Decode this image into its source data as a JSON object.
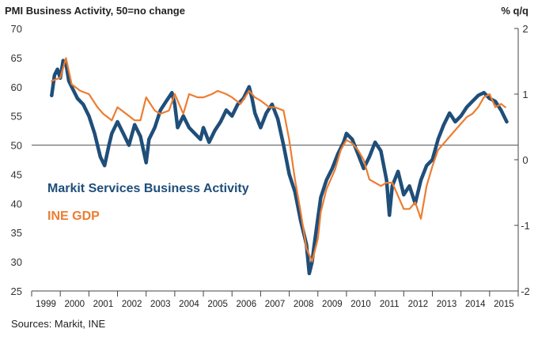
{
  "chart_data": {
    "type": "line",
    "title": "PMI Business Activity, 50=no change",
    "right_axis_title": "% q/q",
    "source": "Sources: Markit, INE",
    "x_range": [
      1999.0,
      2016.0
    ],
    "x_tick_labels": [
      "1999",
      "2000",
      "2001",
      "2002",
      "2003",
      "2004",
      "2005",
      "2006",
      "2007",
      "2008",
      "2009",
      "2010",
      "2011",
      "2012",
      "2013",
      "2014",
      "2015"
    ],
    "y_left": {
      "range": [
        25,
        70
      ],
      "ticks": [
        25,
        30,
        35,
        40,
        45,
        50,
        55,
        60,
        65,
        70
      ]
    },
    "y_right": {
      "range": [
        -2,
        2
      ],
      "ticks": [
        -2,
        -1,
        0,
        1,
        2
      ]
    },
    "reference_line": 50,
    "grid": false,
    "colors": {
      "pmi": "#1f4e79",
      "gdp": "#ed7d31",
      "refline": "#555555"
    },
    "series": [
      {
        "name": "Markit Services Business Activity",
        "axis": "left",
        "x": [
          1999.7,
          1999.8,
          1999.9,
          2000.0,
          2000.1,
          2000.2,
          2000.3,
          2000.4,
          2000.6,
          2000.8,
          2001.0,
          2001.2,
          2001.4,
          2001.55,
          2001.7,
          2001.8,
          2002.0,
          2002.2,
          2002.4,
          2002.6,
          2002.8,
          2003.0,
          2003.1,
          2003.3,
          2003.5,
          2003.7,
          2003.9,
          2004.0,
          2004.1,
          2004.3,
          2004.5,
          2004.7,
          2004.9,
          2005.0,
          2005.2,
          2005.4,
          2005.6,
          2005.8,
          2006.0,
          2006.2,
          2006.4,
          2006.6,
          2006.7,
          2006.8,
          2007.0,
          2007.2,
          2007.4,
          2007.6,
          2007.8,
          2008.0,
          2008.2,
          2008.4,
          2008.6,
          2008.7,
          2008.8,
          2008.85,
          2009.0,
          2009.1,
          2009.3,
          2009.5,
          2009.7,
          2009.9,
          2010.0,
          2010.2,
          2010.4,
          2010.6,
          2010.8,
          2011.0,
          2011.2,
          2011.4,
          2011.5,
          2011.6,
          2011.8,
          2012.0,
          2012.2,
          2012.4,
          2012.6,
          2012.8,
          2013.0,
          2013.2,
          2013.4,
          2013.6,
          2013.8,
          2014.0,
          2014.2,
          2014.4,
          2014.6,
          2014.8,
          2015.0,
          2015.2,
          2015.4,
          2015.5,
          2015.6
        ],
        "values": [
          58.5,
          62.0,
          63.0,
          61.5,
          64.5,
          64.0,
          61.0,
          60.0,
          58.0,
          57.0,
          55.0,
          52.0,
          48.0,
          46.5,
          50.0,
          52.0,
          54.0,
          52.0,
          50.0,
          53.5,
          51.5,
          47.0,
          51.0,
          53.0,
          56.0,
          57.5,
          59.0,
          57.0,
          53.0,
          55.0,
          53.0,
          52.0,
          51.0,
          53.0,
          50.5,
          52.5,
          54.0,
          56.0,
          55.0,
          57.0,
          58.0,
          60.0,
          58.0,
          55.5,
          53.0,
          55.5,
          57.0,
          54.5,
          50.0,
          45.0,
          42.0,
          37.0,
          33.0,
          28.0,
          30.0,
          32.0,
          37.5,
          41.0,
          44.0,
          46.0,
          48.5,
          50.5,
          52.0,
          51.0,
          48.5,
          46.0,
          48.0,
          50.5,
          49.0,
          44.0,
          38.0,
          43.0,
          45.5,
          41.5,
          43.0,
          40.0,
          44.0,
          46.5,
          47.5,
          51.0,
          53.5,
          55.5,
          54.0,
          55.0,
          56.5,
          57.5,
          58.5,
          59.0,
          58.0,
          57.5,
          56.0,
          55.0,
          54.0
        ]
      },
      {
        "name": "INE GDP",
        "axis": "right",
        "x": [
          1999.7,
          2000.0,
          2000.2,
          2000.4,
          2000.7,
          2001.0,
          2001.3,
          2001.5,
          2001.8,
          2002.0,
          2002.3,
          2002.6,
          2002.8,
          2003.0,
          2003.3,
          2003.5,
          2003.8,
          2004.0,
          2004.3,
          2004.5,
          2004.8,
          2005.0,
          2005.3,
          2005.5,
          2005.8,
          2006.0,
          2006.3,
          2006.6,
          2006.8,
          2007.0,
          2007.3,
          2007.5,
          2007.8,
          2008.0,
          2008.2,
          2008.4,
          2008.6,
          2008.8,
          2009.0,
          2009.1,
          2009.3,
          2009.6,
          2009.8,
          2010.0,
          2010.2,
          2010.4,
          2010.6,
          2010.8,
          2011.0,
          2011.2,
          2011.4,
          2011.6,
          2011.8,
          2012.0,
          2012.2,
          2012.4,
          2012.6,
          2012.8,
          2013.0,
          2013.2,
          2013.4,
          2013.6,
          2013.8,
          2014.0,
          2014.2,
          2014.4,
          2014.6,
          2014.8,
          2015.0,
          2015.2,
          2015.4,
          2015.55
        ],
        "values": [
          1.2,
          1.25,
          1.55,
          1.15,
          1.05,
          1.0,
          0.8,
          0.7,
          0.6,
          0.8,
          0.7,
          0.6,
          0.6,
          0.95,
          0.75,
          0.7,
          0.75,
          1.0,
          0.7,
          1.0,
          0.95,
          0.95,
          1.0,
          1.05,
          1.0,
          0.95,
          0.85,
          1.05,
          0.95,
          0.9,
          0.8,
          0.8,
          0.75,
          0.3,
          -0.3,
          -0.8,
          -1.35,
          -1.55,
          -1.2,
          -0.8,
          -0.45,
          -0.15,
          0.15,
          0.3,
          0.25,
          0.15,
          0.0,
          -0.3,
          -0.35,
          -0.4,
          -0.35,
          -0.35,
          -0.55,
          -0.75,
          -0.75,
          -0.65,
          -0.9,
          -0.4,
          -0.1,
          0.15,
          0.25,
          0.35,
          0.45,
          0.55,
          0.65,
          0.7,
          0.8,
          0.95,
          1.0,
          0.8,
          0.85,
          0.8
        ]
      }
    ]
  }
}
